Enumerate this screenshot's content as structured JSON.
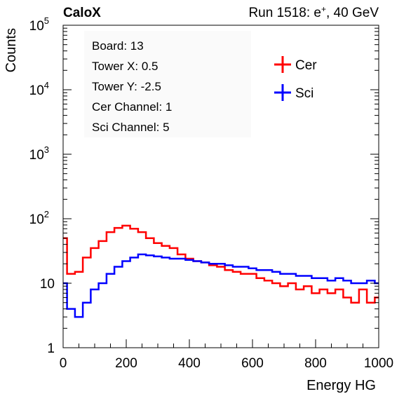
{
  "header": {
    "experiment": "CaloX",
    "run_label": "Run 1518: e",
    "run_sup": "+",
    "run_tail": ", 40 GeV"
  },
  "info_box": {
    "lines": [
      "Board: 13",
      "Tower X: 0.5",
      "Tower Y: -2.5",
      "Cer Channel: 1",
      "Sci Channel: 5"
    ]
  },
  "chart_data": {
    "type": "line",
    "title": "",
    "xlabel": "Energy HG",
    "ylabel": "Counts",
    "xlim": [
      0,
      1000
    ],
    "ylim": [
      1,
      100000
    ],
    "y_scale": "log",
    "grid": false,
    "legend_position": "top-right",
    "x_ticks": [
      0,
      200,
      400,
      600,
      800,
      1000
    ],
    "y_ticks": [
      {
        "base": "1",
        "exp": ""
      },
      {
        "base": "10",
        "exp": ""
      },
      {
        "base": "10",
        "exp": "2"
      },
      {
        "base": "10",
        "exp": "3"
      },
      {
        "base": "10",
        "exp": "4"
      },
      {
        "base": "10",
        "exp": "5"
      }
    ],
    "x": [
      0,
      25,
      50,
      75,
      100,
      125,
      150,
      175,
      200,
      225,
      250,
      275,
      300,
      325,
      350,
      375,
      400,
      425,
      450,
      475,
      500,
      525,
      550,
      575,
      600,
      625,
      650,
      675,
      700,
      725,
      750,
      775,
      800,
      825,
      850,
      875,
      900,
      925,
      950,
      975,
      1000
    ],
    "series": [
      {
        "name": "Cer",
        "color": "#ff0000",
        "values": [
          50,
          14,
          15,
          25,
          35,
          45,
          62,
          72,
          78,
          70,
          62,
          50,
          42,
          38,
          35,
          28,
          24,
          22,
          21,
          19,
          18,
          16,
          15,
          14,
          14,
          12,
          11,
          10,
          9,
          10,
          8,
          9,
          7,
          8,
          7,
          8,
          6,
          5,
          8,
          5,
          6
        ]
      },
      {
        "name": "Sci",
        "color": "#0000ff",
        "values": [
          10,
          4,
          3,
          5,
          8,
          10,
          14,
          18,
          22,
          25,
          28,
          27,
          26,
          25,
          24,
          24,
          23,
          22,
          21,
          20,
          20,
          19,
          18,
          18,
          17,
          16,
          16,
          15,
          14,
          14,
          13,
          13,
          12,
          12,
          11,
          12,
          11,
          10,
          10,
          11,
          10
        ]
      }
    ]
  }
}
